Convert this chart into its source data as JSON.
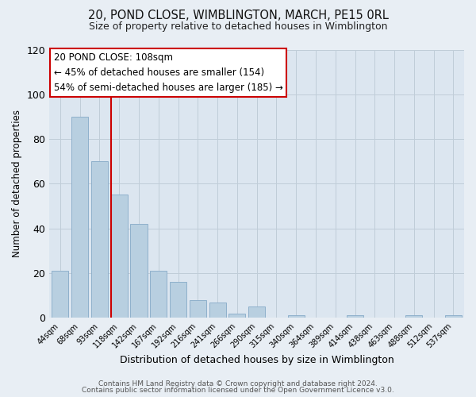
{
  "title": "20, POND CLOSE, WIMBLINGTON, MARCH, PE15 0RL",
  "subtitle": "Size of property relative to detached houses in Wimblington",
  "xlabel": "Distribution of detached houses by size in Wimblington",
  "ylabel": "Number of detached properties",
  "bar_labels": [
    "44sqm",
    "68sqm",
    "93sqm",
    "118sqm",
    "142sqm",
    "167sqm",
    "192sqm",
    "216sqm",
    "241sqm",
    "266sqm",
    "290sqm",
    "315sqm",
    "340sqm",
    "364sqm",
    "389sqm",
    "414sqm",
    "438sqm",
    "463sqm",
    "488sqm",
    "512sqm",
    "537sqm"
  ],
  "bar_values": [
    21,
    90,
    70,
    55,
    42,
    21,
    16,
    8,
    7,
    2,
    5,
    0,
    1,
    0,
    0,
    1,
    0,
    0,
    1,
    0,
    1
  ],
  "bar_color": "#b8cfe0",
  "bar_edge_color": "#8fb0cc",
  "highlight_line_color": "#cc0000",
  "annotation_title": "20 POND CLOSE: 108sqm",
  "annotation_line1": "← 45% of detached houses are smaller (154)",
  "annotation_line2": "54% of semi-detached houses are larger (185) →",
  "annotation_box_color": "#ffffff",
  "annotation_box_edge_color": "#cc0000",
  "ylim": [
    0,
    120
  ],
  "yticks": [
    0,
    20,
    40,
    60,
    80,
    100,
    120
  ],
  "footer1": "Contains HM Land Registry data © Crown copyright and database right 2024.",
  "footer2": "Contains public sector information licensed under the Open Government Licence v3.0.",
  "bg_color": "#e8eef4",
  "plot_bg_color": "#dce6f0"
}
